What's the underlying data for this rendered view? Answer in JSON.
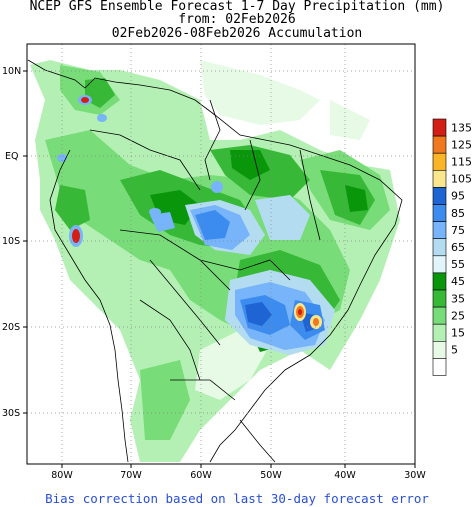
{
  "title": {
    "line1": "NCEP GFS Ensemble Forecast 1-7 Day Precipitation (mm)",
    "line2": "from: 02Feb2026",
    "line3": "02Feb2026-08Feb2026 Accumulation"
  },
  "footer": "Bias correction based on last 30-day forecast error",
  "axes": {
    "longitudes": [
      "80W",
      "70W",
      "60W",
      "50W",
      "40W",
      "30W"
    ],
    "latitudes": [
      "10N",
      "EQ",
      "10S",
      "20S",
      "30S"
    ],
    "grid": "dotted"
  },
  "legend": {
    "placement": "right",
    "bins": [
      {
        "label": "135",
        "color": "#d21e14"
      },
      {
        "label": "125",
        "color": "#f0781e"
      },
      {
        "label": "115",
        "color": "#fab428"
      },
      {
        "label": "105",
        "color": "#fae68c"
      },
      {
        "label": "95",
        "color": "#1e64d2"
      },
      {
        "label": "85",
        "color": "#3c8cf0"
      },
      {
        "label": "75",
        "color": "#78b4fa"
      },
      {
        "label": "65",
        "color": "#b4dcf0"
      },
      {
        "label": "55",
        "color": "#e1f5fa"
      },
      {
        "label": "45",
        "color": "#0a960a"
      },
      {
        "label": "35",
        "color": "#37b937"
      },
      {
        "label": "25",
        "color": "#78dc78"
      },
      {
        "label": "15",
        "color": "#b4f0b4"
      },
      {
        "label": "5",
        "color": "#e6fae6"
      },
      {
        "label": "",
        "color": "#ffffff"
      }
    ]
  }
}
